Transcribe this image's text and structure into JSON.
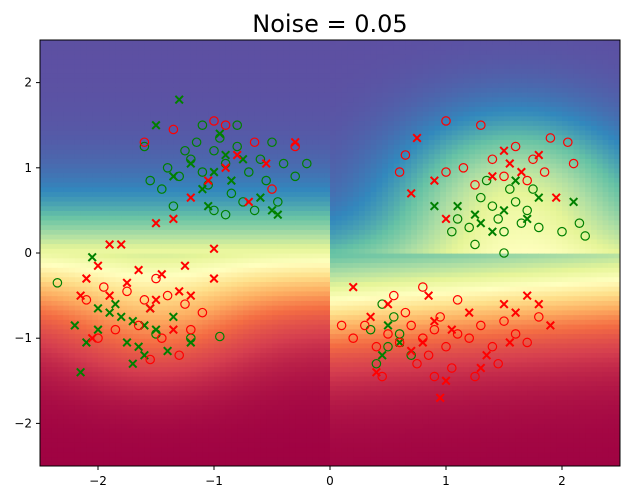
{
  "chart_data": {
    "type": "scatter",
    "title": "Noise = 0.05",
    "xlabel": "",
    "ylabel": "",
    "xlim": [
      -2.5,
      2.5
    ],
    "ylim": [
      -2.5,
      2.5
    ],
    "x_ticks": [
      -2,
      -1,
      0,
      1,
      2
    ],
    "y_ticks": [
      -2,
      -1,
      0,
      1,
      2
    ],
    "x_tick_labels": [
      "−2",
      "−1",
      "0",
      "1",
      "2"
    ],
    "y_tick_labels": [
      "−2",
      "−1",
      "0",
      "1",
      "2"
    ],
    "grid": false,
    "legend": "none",
    "background": "decision-surface-spectral",
    "colors": {
      "red_class": "#ff0000",
      "green_class": "#008000"
    },
    "series": [
      {
        "marker": "o",
        "color": "#008000",
        "points": [
          [
            -1.2,
            1.1
          ],
          [
            -1.1,
            0.95
          ],
          [
            -1.0,
            1.2
          ],
          [
            -0.9,
            1.05
          ],
          [
            -1.05,
            0.8
          ],
          [
            -0.8,
            1.25
          ],
          [
            -1.3,
            0.9
          ],
          [
            -0.95,
            1.35
          ],
          [
            -1.15,
            1.3
          ],
          [
            -0.7,
            0.95
          ],
          [
            -0.85,
            0.7
          ],
          [
            -1.25,
            1.2
          ],
          [
            -0.6,
            1.1
          ],
          [
            -1.4,
            1.0
          ],
          [
            -0.75,
            0.6
          ],
          [
            -1.0,
            0.5
          ],
          [
            -0.55,
            0.85
          ],
          [
            -1.45,
            0.75
          ],
          [
            -0.4,
            1.05
          ],
          [
            -0.3,
            0.9
          ],
          [
            -1.6,
            1.25
          ],
          [
            -0.5,
            1.3
          ],
          [
            -1.1,
            1.5
          ],
          [
            -0.9,
            0.45
          ],
          [
            -0.65,
            0.5
          ],
          [
            -1.35,
            0.55
          ],
          [
            -0.45,
            0.6
          ],
          [
            -1.55,
            0.85
          ],
          [
            -0.2,
            1.05
          ],
          [
            -0.8,
            1.5
          ],
          [
            1.2,
            0.3
          ],
          [
            1.5,
            0.25
          ],
          [
            1.4,
            0.55
          ],
          [
            1.7,
            0.5
          ],
          [
            1.3,
            0.65
          ],
          [
            1.55,
            0.75
          ],
          [
            1.1,
            0.4
          ],
          [
            1.8,
            0.3
          ],
          [
            1.45,
            0.4
          ],
          [
            1.25,
            0.1
          ],
          [
            1.6,
            0.6
          ],
          [
            2.0,
            0.25
          ],
          [
            1.35,
            0.85
          ],
          [
            1.05,
            0.25
          ],
          [
            1.75,
            0.75
          ],
          [
            2.15,
            0.35
          ],
          [
            2.2,
            0.2
          ],
          [
            1.65,
            0.35
          ],
          [
            1.5,
            0.0
          ],
          [
            -2.35,
            -0.35
          ],
          [
            0.5,
            -1.1
          ],
          [
            0.6,
            -0.95
          ],
          [
            0.4,
            -1.3
          ],
          [
            0.55,
            -0.75
          ],
          [
            0.35,
            -0.9
          ],
          [
            0.7,
            -1.2
          ],
          [
            0.45,
            -0.6
          ],
          [
            -1.5,
            -0.95
          ],
          [
            -1.2,
            -1.0
          ],
          [
            -0.95,
            -0.98
          ]
        ]
      },
      {
        "marker": "x",
        "color": "#008000",
        "points": [
          [
            -1.3,
            1.8
          ],
          [
            -0.9,
            1.15
          ],
          [
            -1.0,
            0.95
          ],
          [
            -1.2,
            1.05
          ],
          [
            -0.85,
            0.85
          ],
          [
            -1.1,
            0.75
          ],
          [
            -0.75,
            1.1
          ],
          [
            -1.35,
            0.9
          ],
          [
            -0.6,
            0.65
          ],
          [
            -0.45,
            0.45
          ],
          [
            -1.05,
            0.55
          ],
          [
            -0.95,
            1.4
          ],
          [
            -1.5,
            1.5
          ],
          [
            -0.5,
            0.5
          ],
          [
            -1.8,
            -0.75
          ],
          [
            -1.7,
            -0.8
          ],
          [
            -1.9,
            -0.7
          ],
          [
            -1.6,
            -0.85
          ],
          [
            -1.75,
            -1.05
          ],
          [
            -1.55,
            -0.65
          ],
          [
            -2.0,
            -0.9
          ],
          [
            -1.65,
            -1.1
          ],
          [
            -1.5,
            -0.9
          ],
          [
            -2.2,
            -0.85
          ],
          [
            -2.1,
            -1.05
          ],
          [
            -2.15,
            -1.4
          ],
          [
            -1.4,
            -1.15
          ],
          [
            -1.85,
            -0.6
          ],
          [
            -2.05,
            -0.05
          ],
          [
            -1.7,
            -1.3
          ],
          [
            -1.35,
            -0.75
          ],
          [
            -1.6,
            -1.2
          ],
          [
            -2.0,
            -0.65
          ],
          [
            -1.2,
            -1.05
          ],
          [
            1.1,
            0.55
          ],
          [
            1.3,
            0.35
          ],
          [
            1.5,
            0.5
          ],
          [
            1.7,
            0.4
          ],
          [
            2.1,
            0.6
          ],
          [
            1.6,
            0.85
          ],
          [
            1.4,
            0.25
          ],
          [
            1.25,
            0.45
          ],
          [
            0.9,
            0.55
          ],
          [
            1.8,
            0.65
          ],
          [
            0.6,
            -1.05
          ],
          [
            0.45,
            -1.2
          ],
          [
            0.5,
            -0.85
          ]
        ]
      },
      {
        "marker": "o",
        "color": "#ff0000",
        "points": [
          [
            0.8,
            -1.0
          ],
          [
            0.9,
            -0.9
          ],
          [
            1.0,
            -1.1
          ],
          [
            0.7,
            -0.85
          ],
          [
            0.85,
            -1.2
          ],
          [
            1.1,
            -0.95
          ],
          [
            0.6,
            -1.05
          ],
          [
            0.95,
            -0.75
          ],
          [
            0.75,
            -1.3
          ],
          [
            1.2,
            -1.0
          ],
          [
            0.5,
            -0.95
          ],
          [
            1.3,
            -0.85
          ],
          [
            0.65,
            -0.7
          ],
          [
            1.05,
            -1.35
          ],
          [
            0.4,
            -1.1
          ],
          [
            1.4,
            -1.1
          ],
          [
            0.3,
            -0.85
          ],
          [
            1.5,
            -0.8
          ],
          [
            0.9,
            -1.45
          ],
          [
            0.2,
            -1.0
          ],
          [
            0.1,
            -0.85
          ],
          [
            1.6,
            -0.95
          ],
          [
            1.7,
            -1.05
          ],
          [
            0.55,
            -0.5
          ],
          [
            1.1,
            -0.55
          ],
          [
            0.8,
            -0.4
          ],
          [
            1.25,
            -1.45
          ],
          [
            0.45,
            -1.45
          ],
          [
            1.45,
            -1.3
          ],
          [
            1.8,
            -0.75
          ],
          [
            1.0,
            1.55
          ],
          [
            1.3,
            1.5
          ],
          [
            1.9,
            1.35
          ],
          [
            2.05,
            1.3
          ],
          [
            1.6,
            1.25
          ],
          [
            1.4,
            1.1
          ],
          [
            1.15,
            1.0
          ],
          [
            1.75,
            1.1
          ],
          [
            2.1,
            1.05
          ],
          [
            1.85,
            0.95
          ],
          [
            1.5,
            0.9
          ],
          [
            1.25,
            0.8
          ],
          [
            1.7,
            0.85
          ],
          [
            0.65,
            1.15
          ],
          [
            0.6,
            0.95
          ],
          [
            1.0,
            0.95
          ],
          [
            -1.0,
            1.55
          ],
          [
            -0.65,
            1.3
          ],
          [
            -1.35,
            1.45
          ],
          [
            -0.9,
            1.5
          ],
          [
            -0.3,
            1.25
          ],
          [
            -0.5,
            0.75
          ],
          [
            -1.6,
            1.3
          ],
          [
            -1.5,
            -0.3
          ],
          [
            -1.4,
            -0.5
          ],
          [
            -1.75,
            -0.45
          ],
          [
            -1.95,
            -0.4
          ],
          [
            -1.6,
            -0.55
          ],
          [
            -2.1,
            -0.55
          ],
          [
            -1.85,
            -0.9
          ],
          [
            -1.25,
            -0.6
          ],
          [
            -1.3,
            -1.2
          ],
          [
            -1.2,
            -0.9
          ],
          [
            -1.65,
            -0.85
          ],
          [
            -1.45,
            -1.0
          ],
          [
            -1.55,
            -1.25
          ],
          [
            -1.1,
            -0.7
          ],
          [
            -2.0,
            -1.0
          ]
        ]
      },
      {
        "marker": "x",
        "color": "#ff0000",
        "points": [
          [
            0.8,
            -1.05
          ],
          [
            0.9,
            -0.8
          ],
          [
            1.05,
            -0.9
          ],
          [
            0.7,
            -1.15
          ],
          [
            1.2,
            -0.7
          ],
          [
            0.5,
            -0.6
          ],
          [
            1.35,
            -1.2
          ],
          [
            0.4,
            -1.4
          ],
          [
            1.5,
            -0.6
          ],
          [
            1.7,
            -0.5
          ],
          [
            1.8,
            -0.6
          ],
          [
            0.95,
            -1.7
          ],
          [
            1.3,
            -1.35
          ],
          [
            1.6,
            -0.7
          ],
          [
            0.2,
            -0.4
          ],
          [
            0.85,
            -0.5
          ],
          [
            0.35,
            -0.75
          ],
          [
            1.0,
            -1.5
          ],
          [
            1.9,
            -0.85
          ],
          [
            1.55,
            -1.05
          ],
          [
            0.75,
            1.35
          ],
          [
            0.9,
            0.85
          ],
          [
            0.7,
            0.7
          ],
          [
            1.4,
            0.9
          ],
          [
            1.55,
            1.05
          ],
          [
            1.8,
            1.15
          ],
          [
            1.95,
            0.65
          ],
          [
            1.5,
            1.2
          ],
          [
            1.0,
            0.4
          ],
          [
            1.65,
            0.95
          ],
          [
            -0.9,
            1.0
          ],
          [
            -1.05,
            0.85
          ],
          [
            -0.8,
            1.15
          ],
          [
            -1.2,
            0.65
          ],
          [
            -0.55,
            1.05
          ],
          [
            -1.35,
            0.4
          ],
          [
            -0.3,
            1.3
          ],
          [
            -0.7,
            0.6
          ],
          [
            -1.5,
            0.35
          ],
          [
            -1.9,
            0.1
          ],
          [
            -2.0,
            -0.15
          ],
          [
            -2.1,
            -0.3
          ],
          [
            -1.8,
            0.1
          ],
          [
            -1.65,
            -0.2
          ],
          [
            -2.15,
            -0.5
          ],
          [
            -1.45,
            -0.25
          ],
          [
            -1.25,
            -0.15
          ],
          [
            -1.0,
            0.05
          ],
          [
            -1.5,
            -0.55
          ],
          [
            -1.9,
            -0.5
          ],
          [
            -1.3,
            -0.45
          ],
          [
            -1.55,
            -0.65
          ],
          [
            -1.75,
            -0.35
          ],
          [
            -2.05,
            -1.0
          ],
          [
            -1.35,
            -0.9
          ],
          [
            -1.2,
            -0.5
          ],
          [
            -1.0,
            -0.3
          ]
        ]
      }
    ]
  }
}
